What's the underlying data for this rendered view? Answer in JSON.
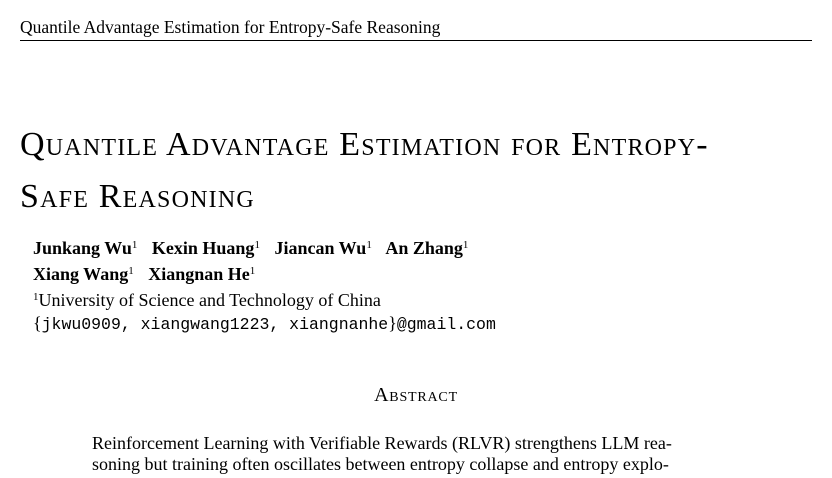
{
  "header": {
    "running_title": "Quantile Advantage Estimation for Entropy-Safe Reasoning"
  },
  "title": {
    "line1": "Quantile Advantage Estimation for Entropy-",
    "line2": "Safe Reasoning"
  },
  "authors": {
    "row1": [
      {
        "name": "Junkang Wu",
        "affil": "1"
      },
      {
        "name": "Kexin Huang",
        "affil": "1"
      },
      {
        "name": "Jiancan Wu",
        "affil": "1"
      },
      {
        "name": "An Zhang",
        "affil": "1"
      }
    ],
    "row2": [
      {
        "name": "Xiang Wang",
        "affil": "1"
      },
      {
        "name": "Xiangnan He",
        "affil": "1"
      }
    ]
  },
  "affiliation": {
    "marker": "1",
    "text": "University of Science and Technology of China"
  },
  "email": {
    "open": "{",
    "handles": "jkwu0909, xiangwang1223, xiangnanhe",
    "close": "}",
    "domain": "@gmail.com"
  },
  "abstract": {
    "heading": "Abstract",
    "lines": [
      "Reinforcement Learning with Verifiable Rewards (RLVR) strengthens LLM rea-",
      "soning but training often oscillates between entropy collapse and entropy explo-"
    ]
  }
}
